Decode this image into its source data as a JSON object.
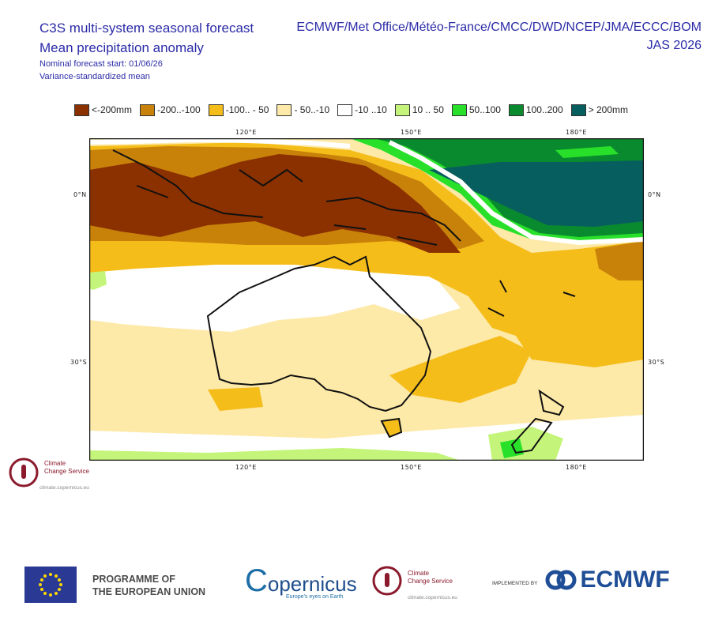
{
  "header": {
    "title": "C3S multi-system seasonal forecast",
    "subtitle": "Mean precipitation anomaly",
    "forecast_start": "Nominal forecast start: 01/06/26",
    "method": "Variance-standardized mean",
    "systems": "ECMWF/Met Office/Météo-France/CMCC/DWD/NCEP/JMA/ECCC/BOM",
    "season": "JAS 2026"
  },
  "legend": [
    {
      "label": "<-200mm",
      "color": "#8b3100"
    },
    {
      "label": "-200..-100",
      "color": "#c8820a"
    },
    {
      "label": "-100.. - 50",
      "color": "#f5bd1a"
    },
    {
      "label": "- 50..-10",
      "color": "#fde9a8"
    },
    {
      "label": "-10 ..10",
      "color": "#ffffff"
    },
    {
      "label": "10 .. 50",
      "color": "#c4f57a"
    },
    {
      "label": "50..100",
      "color": "#28e02a"
    },
    {
      "label": "100..200",
      "color": "#0a8a2e"
    },
    {
      "label": "> 200mm",
      "color": "#075e5e"
    }
  ],
  "map": {
    "lon_labels_top": [
      "120°E",
      "150°E",
      "180°E"
    ],
    "lon_labels_bottom": [
      "120°E",
      "150°E",
      "180°E"
    ],
    "lat_labels_left": [
      "0°N",
      "30°S"
    ],
    "lat_labels_right": [
      "0°N",
      "30°S"
    ]
  },
  "logos": {
    "c3s_name_line1": "Climate",
    "c3s_name_line2": "Change Service",
    "c3s_url": "climate.copernicus.eu",
    "eu_programme_line1": "PROGRAMME OF",
    "eu_programme_line2": "THE EUROPEAN UNION",
    "copernicus": "opernicus",
    "copernicus_c": "C",
    "copernicus_tagline": "Europe's eyes on Earth",
    "implemented_by": "IMPLEMENTED BY",
    "ecmwf": "ECMWF"
  }
}
